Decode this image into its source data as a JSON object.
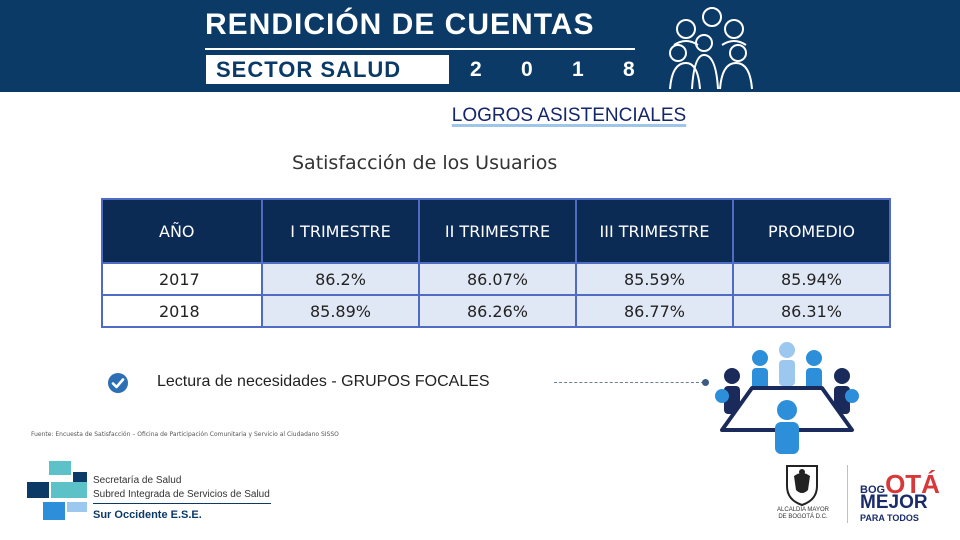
{
  "header": {
    "title": "RENDICIÓN DE CUENTAS",
    "subtitle": "SECTOR SALUD",
    "year_digits": [
      "2",
      "0",
      "1",
      "8"
    ]
  },
  "section_title": "LOGROS ASISTENCIALES",
  "table_title": "Satisfacción de los Usuarios",
  "table": {
    "columns": [
      "AÑO",
      "I TRIMESTRE",
      "II TRIMESTRE",
      "III TRIMESTRE",
      "PROMEDIO"
    ],
    "rows": [
      [
        "2017",
        "86.2%",
        "86.07%",
        "85.59%",
        "85.94%"
      ],
      [
        "2018",
        "85.89%",
        "86.26%",
        "86.77%",
        "86.31%"
      ]
    ]
  },
  "focus_groups": {
    "label": "Lectura de necesidades - GRUPOS FOCALES",
    "icon": "check-circle-icon"
  },
  "source_note": "Fuente: Encuesta de Satisfacción – Oficina de Participación Comunitaria y Servicio al Ciudadano SISSO",
  "footer": {
    "sds_line1": "Secretaría de Salud",
    "sds_line2": "Subred Integrada de Servicios de Salud",
    "sds_line3": "Sur Occidente E.S.E.",
    "alcaldia_line1": "ALCALDÍA MAYOR",
    "alcaldia_line2": "DE BOGOTÁ D.C.",
    "bogota_small": "BOG",
    "bogota_big": "OTÁ",
    "bogota_line2": "MEJOR",
    "bogota_line3": "PARA TODOS"
  },
  "colors": {
    "banner": "#0b3a66",
    "table_header": "#0b2b55",
    "table_border": "#4f6bc4",
    "cell_fill": "#e1e8f5",
    "accent_blue": "#2d8fd9",
    "bogota_red": "#d9383a"
  }
}
